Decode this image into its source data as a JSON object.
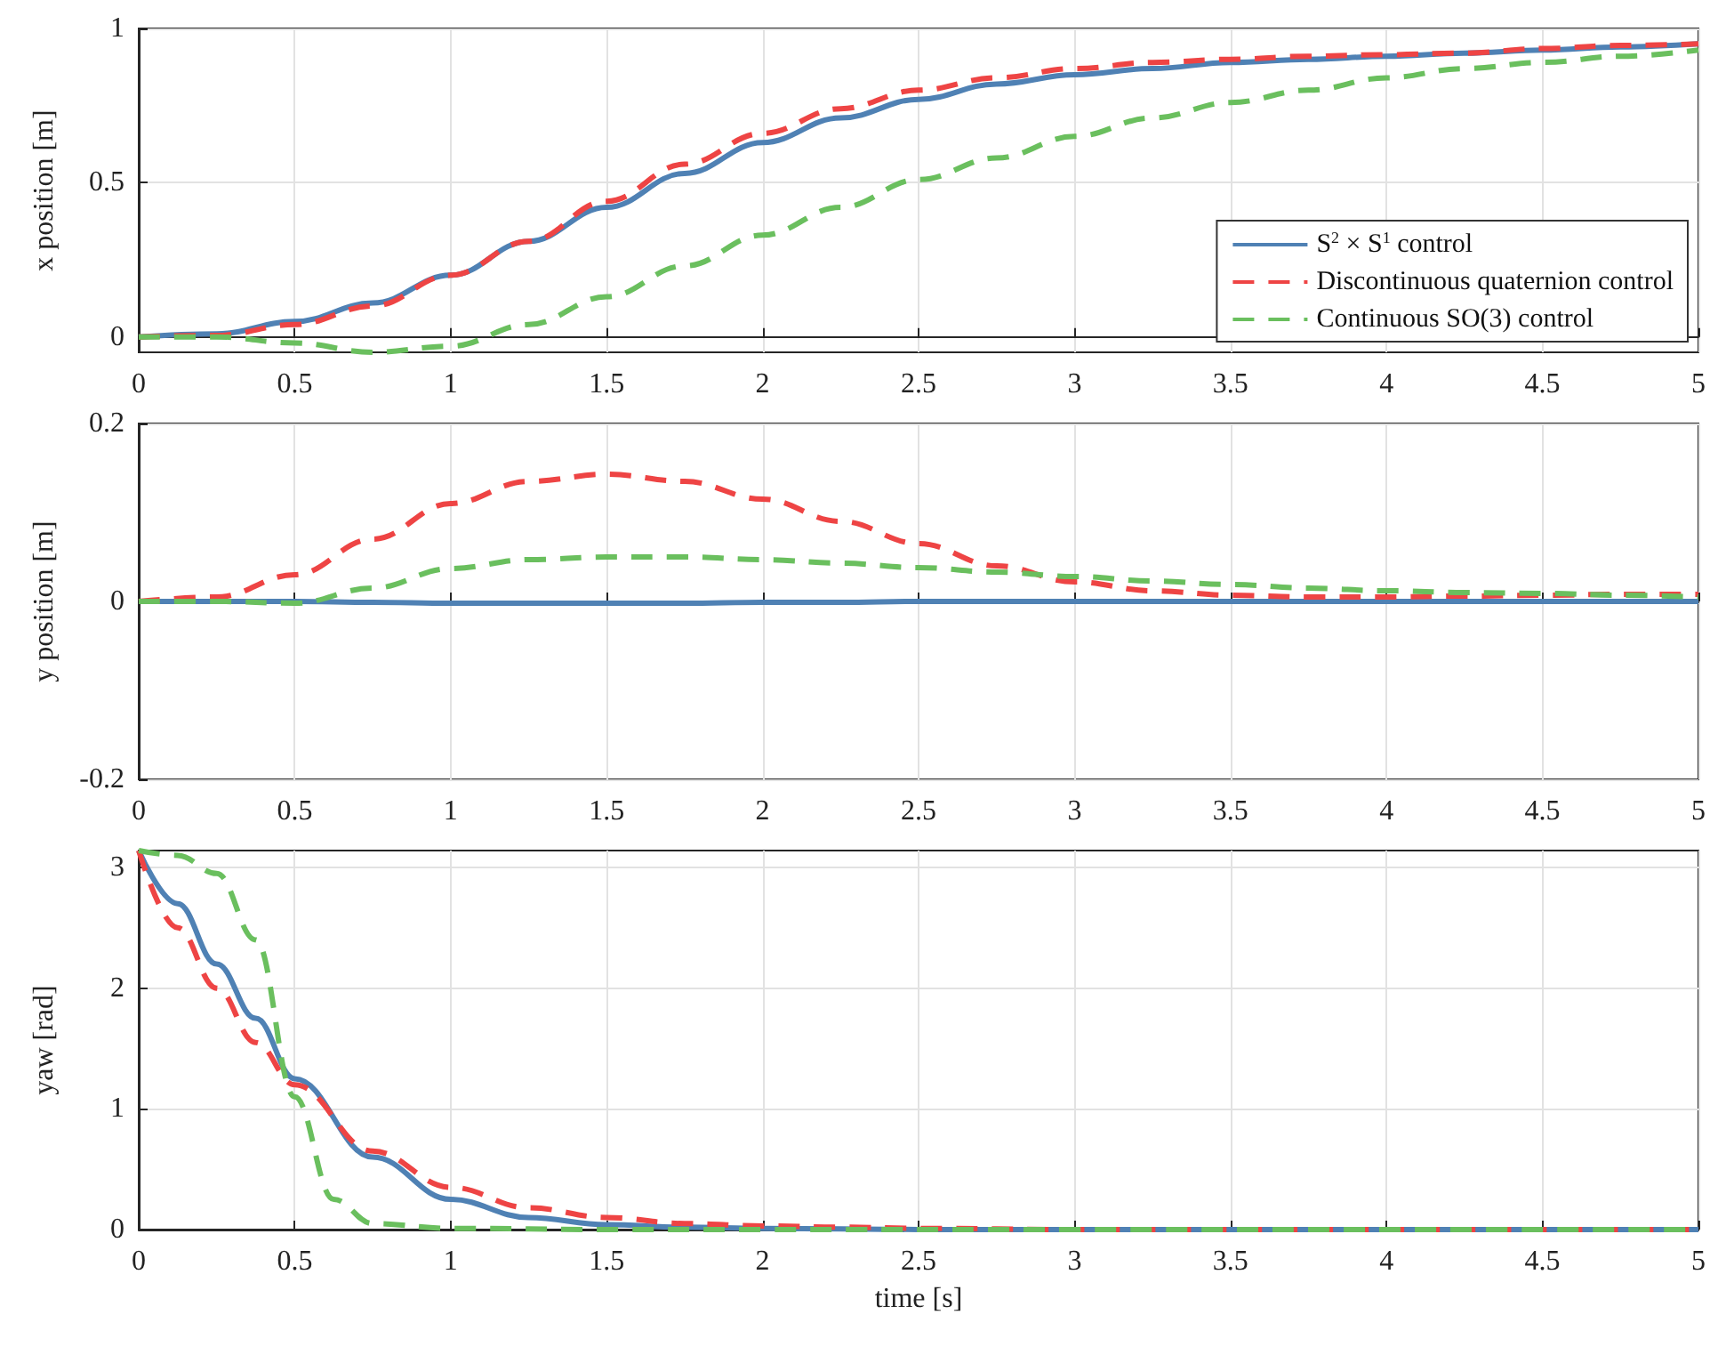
{
  "chart_data": [
    {
      "type": "line",
      "ylabel": "x position [m]",
      "xlim": [
        0,
        5
      ],
      "xticks": [
        0,
        0.5,
        1,
        1.5,
        2,
        2.5,
        3,
        3.5,
        4,
        4.5,
        5
      ],
      "ylim": [
        -0.05,
        1
      ],
      "yticks": [
        0,
        0.5,
        1
      ],
      "grid": true,
      "legend": "bottom right",
      "marker": "none",
      "x": [
        0,
        0.25,
        0.5,
        0.75,
        1,
        1.25,
        1.5,
        1.75,
        2,
        2.25,
        2.5,
        2.75,
        3,
        3.25,
        3.5,
        3.75,
        4,
        4.25,
        4.5,
        4.75,
        5
      ],
      "series": [
        {
          "name": "S$^{2}$ × S$^{1}$ control",
          "color": "#4f81b4",
          "line_style": "solid",
          "values": [
            0,
            0.01,
            0.05,
            0.11,
            0.2,
            0.31,
            0.42,
            0.53,
            0.63,
            0.71,
            0.77,
            0.82,
            0.85,
            0.87,
            0.89,
            0.9,
            0.91,
            0.92,
            0.93,
            0.94,
            0.95
          ]
        },
        {
          "name": "Discontinuous quaternion control",
          "color": "#ee4444",
          "line_style": "dashed",
          "values": [
            0,
            0.005,
            0.04,
            0.1,
            0.2,
            0.31,
            0.44,
            0.56,
            0.66,
            0.74,
            0.8,
            0.84,
            0.87,
            0.89,
            0.9,
            0.91,
            0.915,
            0.92,
            0.935,
            0.945,
            0.95
          ]
        },
        {
          "name": "Continuous SO(3) control",
          "color": "#6abf5e",
          "line_style": "dashed",
          "values": [
            0,
            0,
            -0.02,
            -0.05,
            -0.03,
            0.04,
            0.13,
            0.23,
            0.33,
            0.42,
            0.51,
            0.58,
            0.65,
            0.71,
            0.76,
            0.8,
            0.84,
            0.87,
            0.89,
            0.91,
            0.93
          ]
        }
      ]
    },
    {
      "type": "line",
      "ylabel": "y position [m]",
      "xlim": [
        0,
        5
      ],
      "xticks": [
        0,
        0.5,
        1,
        1.5,
        2,
        2.5,
        3,
        3.5,
        4,
        4.5,
        5
      ],
      "ylim": [
        -0.2,
        0.2
      ],
      "yticks": [
        -0.2,
        0,
        0.2
      ],
      "grid": true,
      "marker": "none",
      "x": [
        0,
        0.25,
        0.5,
        0.75,
        1,
        1.25,
        1.5,
        1.75,
        2,
        2.25,
        2.5,
        2.75,
        3,
        3.25,
        3.5,
        3.75,
        4,
        4.25,
        4.5,
        4.75,
        5
      ],
      "series": [
        {
          "color": "#4f81b4",
          "line_style": "solid",
          "values": [
            0,
            0,
            0,
            -0.001,
            -0.002,
            -0.002,
            -0.002,
            -0.002,
            -0.001,
            -0.001,
            0,
            0,
            0,
            0,
            0,
            0,
            0,
            0,
            0,
            0,
            0
          ]
        },
        {
          "color": "#ee4444",
          "line_style": "dashed",
          "values": [
            0,
            0.005,
            0.03,
            0.07,
            0.11,
            0.135,
            0.143,
            0.135,
            0.115,
            0.09,
            0.065,
            0.04,
            0.022,
            0.012,
            0.007,
            0.005,
            0.005,
            0.006,
            0.007,
            0.008,
            0.008
          ]
        },
        {
          "color": "#6abf5e",
          "line_style": "dashed",
          "values": [
            0,
            0,
            -0.002,
            0.015,
            0.037,
            0.047,
            0.05,
            0.05,
            0.047,
            0.043,
            0.038,
            0.033,
            0.028,
            0.023,
            0.019,
            0.015,
            0.012,
            0.01,
            0.009,
            0.007,
            0.005
          ]
        }
      ]
    },
    {
      "type": "line",
      "ylabel": "yaw [rad]",
      "xlabel": "time [s]",
      "xlim": [
        0,
        5
      ],
      "xticks": [
        0,
        0.5,
        1,
        1.5,
        2,
        2.5,
        3,
        3.5,
        4,
        4.5,
        5
      ],
      "ylim": [
        0,
        3.14
      ],
      "yticks": [
        0,
        1,
        2,
        3
      ],
      "grid": true,
      "marker": "none",
      "series": [
        {
          "color": "#4f81b4",
          "line_style": "solid",
          "x": [
            0,
            0.125,
            0.25,
            0.375,
            0.5,
            0.75,
            1,
            1.25,
            1.5,
            1.75,
            2,
            2.5,
            3,
            4,
            5
          ],
          "values": [
            3.14,
            2.7,
            2.2,
            1.75,
            1.25,
            0.6,
            0.25,
            0.1,
            0.04,
            0.02,
            0.01,
            0,
            0,
            0,
            0
          ]
        },
        {
          "color": "#ee4444",
          "line_style": "dashed",
          "x": [
            0,
            0.125,
            0.25,
            0.375,
            0.5,
            0.75,
            1,
            1.25,
            1.5,
            1.75,
            2,
            2.25,
            2.5,
            3,
            4,
            5
          ],
          "values": [
            3.14,
            2.5,
            2,
            1.55,
            1.2,
            0.65,
            0.35,
            0.18,
            0.1,
            0.05,
            0.03,
            0.02,
            0.01,
            0,
            0,
            0
          ]
        },
        {
          "color": "#6abf5e",
          "line_style": "dashed",
          "x": [
            0,
            0.125,
            0.25,
            0.375,
            0.5,
            0.625,
            0.75,
            1,
            1.5,
            2,
            3,
            4,
            5
          ],
          "values": [
            3.14,
            3.1,
            2.95,
            2.4,
            1.1,
            0.25,
            0.05,
            0.01,
            0,
            0,
            0,
            0,
            0
          ]
        }
      ]
    }
  ]
}
